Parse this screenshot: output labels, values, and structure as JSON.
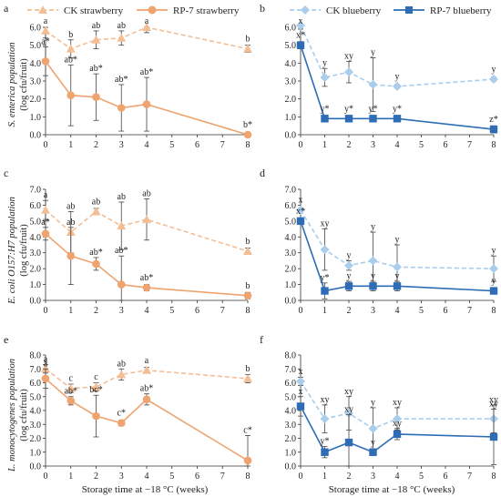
{
  "figure": {
    "x_axis_label": "Storage time at −18 °C (weeks)",
    "legends": {
      "left": [
        {
          "name": "CK strawberry",
          "color": "#F4BE95",
          "marker": "triangle",
          "dashed": true
        },
        {
          "name": "RP-7 strawberry",
          "color": "#EFA36E",
          "marker": "circle",
          "dashed": false
        }
      ],
      "right": [
        {
          "name": "CK blueberry",
          "color": "#A9CDEB",
          "marker": "diamond",
          "dashed": true
        },
        {
          "name": "RP-7 blueberry",
          "color": "#2E6DB5",
          "marker": "square",
          "dashed": false
        }
      ]
    }
  },
  "chart_data": [
    {
      "type": "line",
      "panel": "a",
      "ylabel_lines": [
        "S. enterica population",
        "(log cfu/fruit)"
      ],
      "ylim": [
        0,
        6
      ],
      "yticks": [
        "0.0",
        "1.0",
        "2.0",
        "3.0",
        "4.0",
        "5.0",
        "6.0"
      ],
      "x": [
        0,
        1,
        2,
        3,
        4,
        8
      ],
      "xticks": [
        "0",
        "1",
        "2",
        "3",
        "4",
        "5",
        "6",
        "7",
        "8"
      ],
      "series": [
        {
          "name": "CK strawberry",
          "values": [
            5.8,
            4.8,
            5.3,
            5.4,
            6.0,
            4.8
          ],
          "err": [
            0.4,
            0.5,
            0.5,
            0.4,
            0.3,
            0.2
          ],
          "labels": [
            "a",
            "b",
            "ab",
            "ab",
            "a",
            "b"
          ]
        },
        {
          "name": "RP-7 strawberry",
          "values": [
            4.1,
            2.2,
            2.1,
            1.5,
            1.7,
            0.0
          ],
          "err": [
            0.8,
            1.7,
            1.3,
            1.3,
            1.5,
            0.0
          ],
          "labels": [
            "a*",
            "ab*",
            "ab*",
            "ab*",
            "ab*",
            "b*"
          ]
        }
      ]
    },
    {
      "type": "line",
      "panel": "b",
      "ylim": [
        0,
        6
      ],
      "yticks": [
        "0.0",
        "1.0",
        "2.0",
        "3.0",
        "4.0",
        "5.0",
        "6.0"
      ],
      "x": [
        0,
        1,
        2,
        3,
        4,
        8
      ],
      "xticks": [
        "0",
        "1",
        "2",
        "3",
        "4",
        "5",
        "6",
        "7",
        "8"
      ],
      "series": [
        {
          "name": "CK blueberry",
          "values": [
            6.1,
            3.2,
            3.5,
            2.8,
            2.7,
            3.1
          ],
          "err": [
            0.2,
            0.5,
            0.6,
            1.5,
            0.1,
            0.1
          ],
          "labels": [
            "x",
            "y",
            "xy",
            "y",
            "y",
            "y"
          ]
        },
        {
          "name": "RP-7 blueberry",
          "values": [
            5.0,
            0.9,
            0.9,
            0.9,
            0.9,
            0.3
          ],
          "err": [
            0.2,
            0.0,
            0.0,
            0.0,
            0.0,
            0.2
          ],
          "labels": [
            "x*",
            "y*",
            "y*",
            "y*",
            "y*",
            "z*"
          ]
        }
      ]
    },
    {
      "type": "line",
      "panel": "c",
      "ylabel_lines": [
        "E. coli O157:H7 population",
        "(log cfu/fruit)"
      ],
      "ylim": [
        0,
        7
      ],
      "yticks": [
        "0.0",
        "1.0",
        "2.0",
        "3.0",
        "4.0",
        "5.0",
        "6.0",
        "7.0"
      ],
      "x": [
        0,
        1,
        2,
        3,
        4,
        8
      ],
      "xticks": [
        "0",
        "1",
        "2",
        "3",
        "4",
        "5",
        "6",
        "7",
        "8"
      ],
      "series": [
        {
          "name": "CK strawberry",
          "values": [
            5.7,
            4.3,
            5.6,
            4.7,
            5.1,
            3.1
          ],
          "err": [
            0.6,
            1.3,
            0.2,
            1.5,
            1.3,
            0.2
          ],
          "labels": [
            "a",
            "ab",
            "ab",
            "ab",
            "ab",
            "b"
          ]
        },
        {
          "name": "RP-7 strawberry",
          "values": [
            4.2,
            2.8,
            2.3,
            1.0,
            0.8,
            0.3
          ],
          "err": [
            0.4,
            1.8,
            0.4,
            1.8,
            0.2,
            0.2
          ],
          "labels": [
            "a*",
            "ab",
            "ab*",
            "ab*",
            "ab*",
            "b"
          ]
        }
      ]
    },
    {
      "type": "line",
      "panel": "d",
      "ylim": [
        0,
        7
      ],
      "yticks": [
        "0.0",
        "1.0",
        "2.0",
        "3.0",
        "4.0",
        "5.0",
        "6.0",
        "7.0"
      ],
      "x": [
        0,
        1,
        2,
        3,
        4,
        8
      ],
      "xticks": [
        "0",
        "1",
        "2",
        "3",
        "4",
        "5",
        "6",
        "7",
        "8"
      ],
      "series": [
        {
          "name": "CK blueberry",
          "values": [
            5.7,
            3.2,
            2.2,
            2.5,
            2.1,
            2.0
          ],
          "err": [
            0.1,
            1.3,
            0.3,
            1.8,
            1.4,
            0.8
          ],
          "labels": [
            "x",
            "xy",
            "y",
            "y",
            "y",
            "y"
          ]
        },
        {
          "name": "RP-7 blueberry",
          "values": [
            5.0,
            0.6,
            0.9,
            0.9,
            0.9,
            0.6
          ],
          "err": [
            0.2,
            0.5,
            0.3,
            0.3,
            0.3,
            0.2
          ],
          "labels": [
            "x*",
            "y*",
            "y",
            "y",
            "y",
            "y"
          ]
        }
      ]
    },
    {
      "type": "line",
      "panel": "e",
      "ylabel_lines": [
        "L. monocytogenes population",
        "(log cfu/fruit)"
      ],
      "ylim": [
        0,
        8
      ],
      "yticks": [
        "0.0",
        "1.0",
        "2.0",
        "3.0",
        "4.0",
        "5.0",
        "6.0",
        "7.0",
        "8.0"
      ],
      "x": [
        0,
        1,
        2,
        3,
        4,
        8
      ],
      "xticks": [
        "0",
        "1",
        "2",
        "3",
        "4",
        "5",
        "6",
        "7",
        "8"
      ],
      "series": [
        {
          "name": "CK strawberry",
          "values": [
            7.0,
            5.6,
            5.7,
            6.6,
            6.9,
            6.3
          ],
          "err": [
            0.3,
            0.3,
            0.3,
            0.4,
            0.2,
            0.3
          ],
          "labels": [
            "a",
            "c",
            "c",
            "ab",
            "a",
            "b"
          ]
        },
        {
          "name": "RP-7 strawberry",
          "values": [
            6.3,
            4.7,
            3.6,
            3.1,
            4.8,
            0.4
          ],
          "err": [
            0.7,
            0.3,
            1.5,
            0.2,
            0.4,
            1.8
          ],
          "labels": [
            "a",
            "ab*",
            "bc*",
            "c*",
            "ab*",
            "c*"
          ]
        }
      ]
    },
    {
      "type": "line",
      "panel": "f",
      "ylim": [
        0,
        8
      ],
      "yticks": [
        "0.0",
        "1.0",
        "2.0",
        "3.0",
        "4.0",
        "5.0",
        "6.0",
        "7.0",
        "8.0"
      ],
      "x": [
        0,
        1,
        2,
        3,
        4,
        8
      ],
      "xticks": [
        "0",
        "1",
        "2",
        "3",
        "4",
        "5",
        "6",
        "7",
        "8"
      ],
      "series": [
        {
          "name": "CK blueberry",
          "values": [
            6.1,
            3.4,
            3.8,
            2.7,
            3.4,
            3.4
          ],
          "err": [
            0.3,
            1.0,
            1.2,
            1.5,
            0.8,
            1.0
          ],
          "labels": [
            "x",
            "xy",
            "xy",
            "y",
            "xy",
            "xy"
          ]
        },
        {
          "name": "RP-7 blueberry",
          "values": [
            4.3,
            1.0,
            1.7,
            1.0,
            2.3,
            2.1
          ],
          "err": [
            0.7,
            0.4,
            2.0,
            0.2,
            0.4,
            2.0
          ],
          "labels": [
            "x",
            "y*",
            "xy",
            "y",
            "xy",
            "xy"
          ]
        }
      ]
    }
  ]
}
